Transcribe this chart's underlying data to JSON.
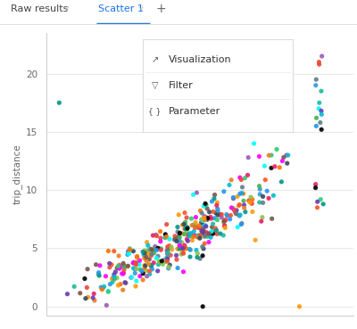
{
  "ylabel": "trip_distance",
  "bg_color": "#ffffff",
  "plot_bg": "#ffffff",
  "grid_color": "#e8e8e8",
  "axis_color": "#cccccc",
  "tick_color": "#666666",
  "yticks": [
    0,
    5,
    10,
    15,
    20
  ],
  "ylim": [
    -0.8,
    23.5
  ],
  "xlim": [
    -0.03,
    1.05
  ],
  "tab_text_active": "Scatter 1",
  "tab_text_inactive": "Raw results",
  "tab_active_color": "#1a73e8",
  "tab_inactive_color": "#444444",
  "menu_items": [
    "Visualization",
    "Filter",
    "Parameter"
  ],
  "n_points": 320,
  "seed": 42,
  "colors": [
    "#e74c3c",
    "#3498db",
    "#2ecc71",
    "#9b59b6",
    "#f39c12",
    "#1abc9c",
    "#e67e22",
    "#34495e",
    "#e91e63",
    "#00bcd4",
    "#ff5722",
    "#607d8b",
    "#795548",
    "#ff9800",
    "#8bc34a",
    "#009688",
    "#673ab7",
    "#f44336",
    "#2196f3",
    "#4caf50",
    "#000000",
    "#ff00ff",
    "#00ffff",
    "#ff6f00"
  ]
}
